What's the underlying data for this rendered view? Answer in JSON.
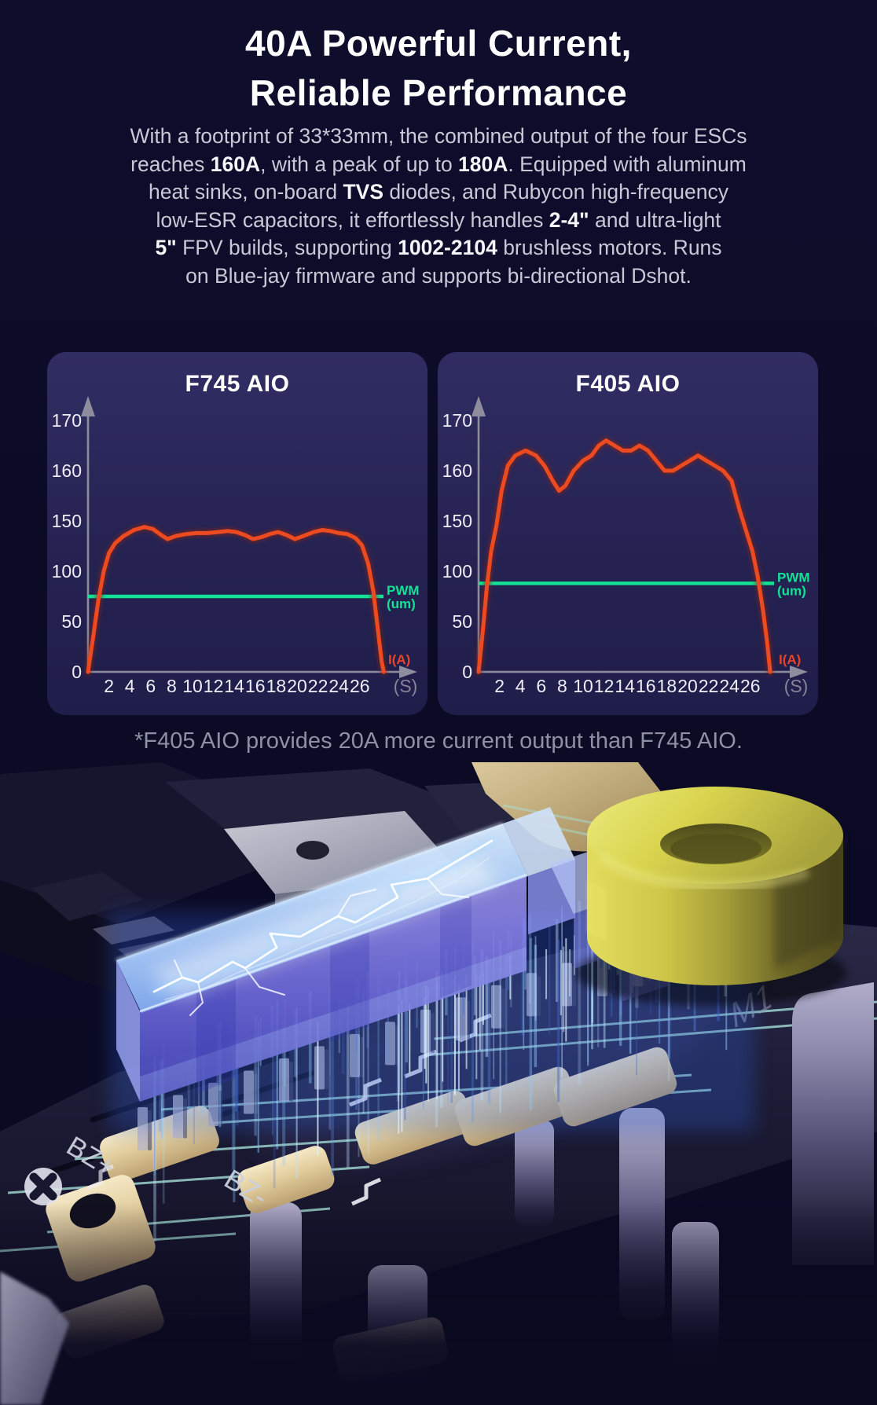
{
  "header": {
    "title_line1": "40A Powerful Current,",
    "title_line2": "Reliable Performance"
  },
  "description": {
    "lines": [
      [
        {
          "t": "With a footprint of 33*33mm, the combined output of the four ESCs",
          "b": 0
        }
      ],
      [
        {
          "t": "reaches ",
          "b": 0
        },
        {
          "t": "160A",
          "b": 1
        },
        {
          "t": ", with a peak of up to ",
          "b": 0
        },
        {
          "t": "180A",
          "b": 1
        },
        {
          "t": ". Equipped with aluminum",
          "b": 0
        }
      ],
      [
        {
          "t": "heat sinks, on-board ",
          "b": 0
        },
        {
          "t": "TVS",
          "b": 1
        },
        {
          "t": " diodes, and Rubycon high-frequency",
          "b": 0
        }
      ],
      [
        {
          "t": "low-ESR capacitors, it effortlessly handles ",
          "b": 0
        },
        {
          "t": "2-4\"",
          "b": 1
        },
        {
          "t": " and ultra-light",
          "b": 0
        }
      ],
      [
        {
          "t": "5\"",
          "b": 1
        },
        {
          "t": " FPV builds, supporting ",
          "b": 0
        },
        {
          "t": "1002-2104",
          "b": 1
        },
        {
          "t": " brushless motors. Runs",
          "b": 0
        }
      ],
      [
        {
          "t": "on Blue-jay firmware and supports bi-directional Dshot.",
          "b": 0
        }
      ]
    ]
  },
  "footnote": "*F405 AIO provides 20A more current output than F745 AIO.",
  "chart_data": [
    {
      "type": "line",
      "title": "F745 AIO",
      "x_axis": {
        "ticks": [
          2,
          4,
          6,
          8,
          10,
          12,
          14,
          16,
          18,
          20,
          22,
          24,
          26
        ],
        "unit_label": "(S)",
        "quantity_label": "I(A)",
        "max": 28.5
      },
      "y_axis": {
        "ticks": [
          0,
          50,
          100,
          150,
          160,
          170
        ],
        "note": "non-linear axis: listed ticks are evenly spaced",
        "grid": false
      },
      "series": [
        {
          "name": "Current I(A)",
          "color": "#ec4b21",
          "points": [
            [
              0,
              0
            ],
            [
              0.5,
              35
            ],
            [
              1,
              72
            ],
            [
              1.5,
              100
            ],
            [
              2,
              118
            ],
            [
              2.6,
              128
            ],
            [
              3.4,
              135
            ],
            [
              4.4,
              141
            ],
            [
              5.4,
              144
            ],
            [
              6.2,
              142
            ],
            [
              7,
              136
            ],
            [
              7.6,
              132
            ],
            [
              8.4,
              135
            ],
            [
              9.4,
              137
            ],
            [
              10.4,
              138
            ],
            [
              11.4,
              138
            ],
            [
              12.4,
              139
            ],
            [
              13.4,
              140
            ],
            [
              14.2,
              139
            ],
            [
              15,
              136
            ],
            [
              15.8,
              132
            ],
            [
              16.6,
              134
            ],
            [
              17.4,
              137
            ],
            [
              18.2,
              139
            ],
            [
              19,
              136
            ],
            [
              19.8,
              132
            ],
            [
              20.6,
              135
            ],
            [
              21.6,
              139
            ],
            [
              22.4,
              141
            ],
            [
              23.2,
              140
            ],
            [
              24,
              138
            ],
            [
              24.8,
              137
            ],
            [
              25.6,
              133
            ],
            [
              26.2,
              126
            ],
            [
              26.8,
              108
            ],
            [
              27.3,
              80
            ],
            [
              27.7,
              45
            ],
            [
              28.1,
              10
            ],
            [
              28.3,
              0
            ]
          ]
        },
        {
          "name": "PWM (um)",
          "color": "#12e294",
          "value": 75,
          "label_line1": "PWM",
          "label_line2": "(um)"
        }
      ]
    },
    {
      "type": "line",
      "title": "F405 AIO",
      "x_axis": {
        "ticks": [
          2,
          4,
          6,
          8,
          10,
          12,
          14,
          16,
          18,
          20,
          22,
          24,
          26
        ],
        "unit_label": "(S)",
        "quantity_label": "I(A)",
        "max": 28.5
      },
      "y_axis": {
        "ticks": [
          0,
          50,
          100,
          150,
          160,
          170
        ],
        "note": "non-linear axis: listed ticks are evenly spaced",
        "grid": false
      },
      "series": [
        {
          "name": "Current I(A)",
          "color": "#ec4b21",
          "points": [
            [
              0,
              0
            ],
            [
              0.4,
              40
            ],
            [
              0.8,
              85
            ],
            [
              1.2,
              120
            ],
            [
              1.7,
              145
            ],
            [
              2.2,
              156
            ],
            [
              2.8,
              161
            ],
            [
              3.5,
              163
            ],
            [
              4.5,
              164
            ],
            [
              5.5,
              163
            ],
            [
              6.3,
              161
            ],
            [
              7.1,
              158
            ],
            [
              7.7,
              156
            ],
            [
              8.3,
              157
            ],
            [
              9.1,
              160
            ],
            [
              10,
              162
            ],
            [
              10.8,
              163
            ],
            [
              11.5,
              165
            ],
            [
              12.2,
              166
            ],
            [
              13,
              165
            ],
            [
              13.8,
              164
            ],
            [
              14.6,
              164
            ],
            [
              15.4,
              165
            ],
            [
              16.2,
              164
            ],
            [
              17,
              162
            ],
            [
              17.8,
              160
            ],
            [
              18.6,
              160
            ],
            [
              19.4,
              161
            ],
            [
              20.2,
              162
            ],
            [
              21,
              163
            ],
            [
              21.8,
              162
            ],
            [
              22.6,
              161
            ],
            [
              23.4,
              160
            ],
            [
              24.2,
              158
            ],
            [
              25,
              152
            ],
            [
              25.6,
              140
            ],
            [
              26.2,
              120
            ],
            [
              26.7,
              95
            ],
            [
              27.2,
              62
            ],
            [
              27.6,
              30
            ],
            [
              27.9,
              0
            ]
          ]
        },
        {
          "name": "PWM (um)",
          "color": "#12e294",
          "value": 88,
          "label_line1": "PWM",
          "label_line2": "(um)"
        }
      ]
    }
  ],
  "scene": {
    "labels": {
      "m1": "M1",
      "bz_plus": "BZ+",
      "bz_minus": "BZ-"
    },
    "colors": {
      "capacitor": "#d8d44e",
      "glow_block": "#8cc6fa",
      "trace": "#a6e0d8",
      "pad_gold": "#e3cf9f"
    }
  }
}
